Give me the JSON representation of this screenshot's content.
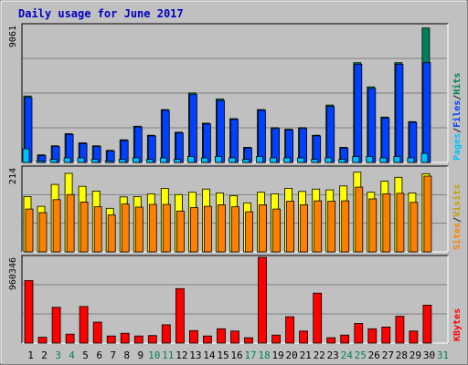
{
  "chart_data": {
    "type": "bar",
    "title": "Daily usage for June 2017",
    "categories": [
      "1",
      "2",
      "3",
      "4",
      "5",
      "6",
      "7",
      "8",
      "9",
      "10",
      "11",
      "12",
      "13",
      "14",
      "15",
      "16",
      "17",
      "18",
      "19",
      "20",
      "21",
      "22",
      "23",
      "24",
      "25",
      "26",
      "27",
      "28",
      "29",
      "30",
      "31"
    ],
    "weekend_days": [
      "3",
      "4",
      "10",
      "11",
      "17",
      "18",
      "24",
      "25",
      "31"
    ],
    "panels": [
      {
        "id": "hits-files-pages",
        "ymax": 9061,
        "ymax_label": "9061",
        "legend": [
          "Pages",
          "/",
          "Files",
          "/",
          "Hits"
        ],
        "series": [
          {
            "name": "Hits",
            "color": "#00805c",
            "values": [
              4400,
              500,
              1100,
              1900,
              1300,
              1100,
              800,
              1500,
              2400,
              1800,
              3500,
              2000,
              4600,
              2600,
              4200,
              2900,
              1000,
              3500,
              2300,
              2200,
              2300,
              1800,
              3800,
              1000,
              6600,
              5000,
              3000,
              6600,
              2700,
              8900,
              0
            ]
          },
          {
            "name": "Files",
            "color": "#0040ff",
            "values": [
              4300,
              450,
              1050,
              1850,
              1250,
              1050,
              750,
              1450,
              2350,
              1750,
              3450,
              1950,
              4500,
              2550,
              4100,
              2850,
              950,
              3450,
              2250,
              2150,
              2250,
              1750,
              3700,
              950,
              6500,
              4900,
              2950,
              6500,
              2650,
              6600,
              0
            ]
          },
          {
            "name": "Pages",
            "color": "#00c0ff",
            "values": [
              900,
              100,
              200,
              300,
              300,
              200,
              100,
              200,
              300,
              200,
              300,
              200,
              400,
              300,
              400,
              300,
              200,
              400,
              300,
              300,
              300,
              200,
              300,
              200,
              400,
              400,
              300,
              400,
              300,
              600,
              0
            ]
          }
        ]
      },
      {
        "id": "visits-sites",
        "ymax": 214,
        "ymax_label": "214",
        "legend": [
          "Sites",
          "/",
          "Visits"
        ],
        "series": [
          {
            "name": "Visits",
            "color": "#ffff00",
            "values": [
              141,
              116,
              172,
              200,
              167,
              155,
              111,
              140,
              141,
              148,
              162,
              146,
              152,
              160,
              150,
              143,
              125,
              152,
              148,
              162,
              154,
              160,
              158,
              168,
              203,
              152,
              180,
              190,
              150,
              199,
              0
            ]
          },
          {
            "name": "Sites",
            "color": "#ff8000",
            "values": [
              109,
              100,
              133,
              146,
              127,
              115,
              94,
              122,
              114,
              121,
              121,
              104,
              113,
              116,
              120,
              115,
              102,
              120,
              109,
              129,
              120,
              130,
              129,
              130,
              165,
              135,
              148,
              149,
              126,
              193,
              0
            ]
          }
        ]
      },
      {
        "id": "kbytes",
        "ymax": 960346,
        "ymax_label": "960346",
        "legend": [
          "KBytes"
        ],
        "series": [
          {
            "name": "KBytes",
            "color": "#ff0000",
            "values": [
              700000,
              65000,
              400000,
              100000,
              410000,
              235000,
              80000,
              110000,
              80000,
              85000,
              205000,
              610000,
              140000,
              80000,
              160000,
              135000,
              60000,
              960346,
              90000,
              295000,
              135000,
              560000,
              60000,
              90000,
              220000,
              160000,
              180000,
              300000,
              135000,
              425000,
              0
            ]
          }
        ]
      }
    ]
  }
}
